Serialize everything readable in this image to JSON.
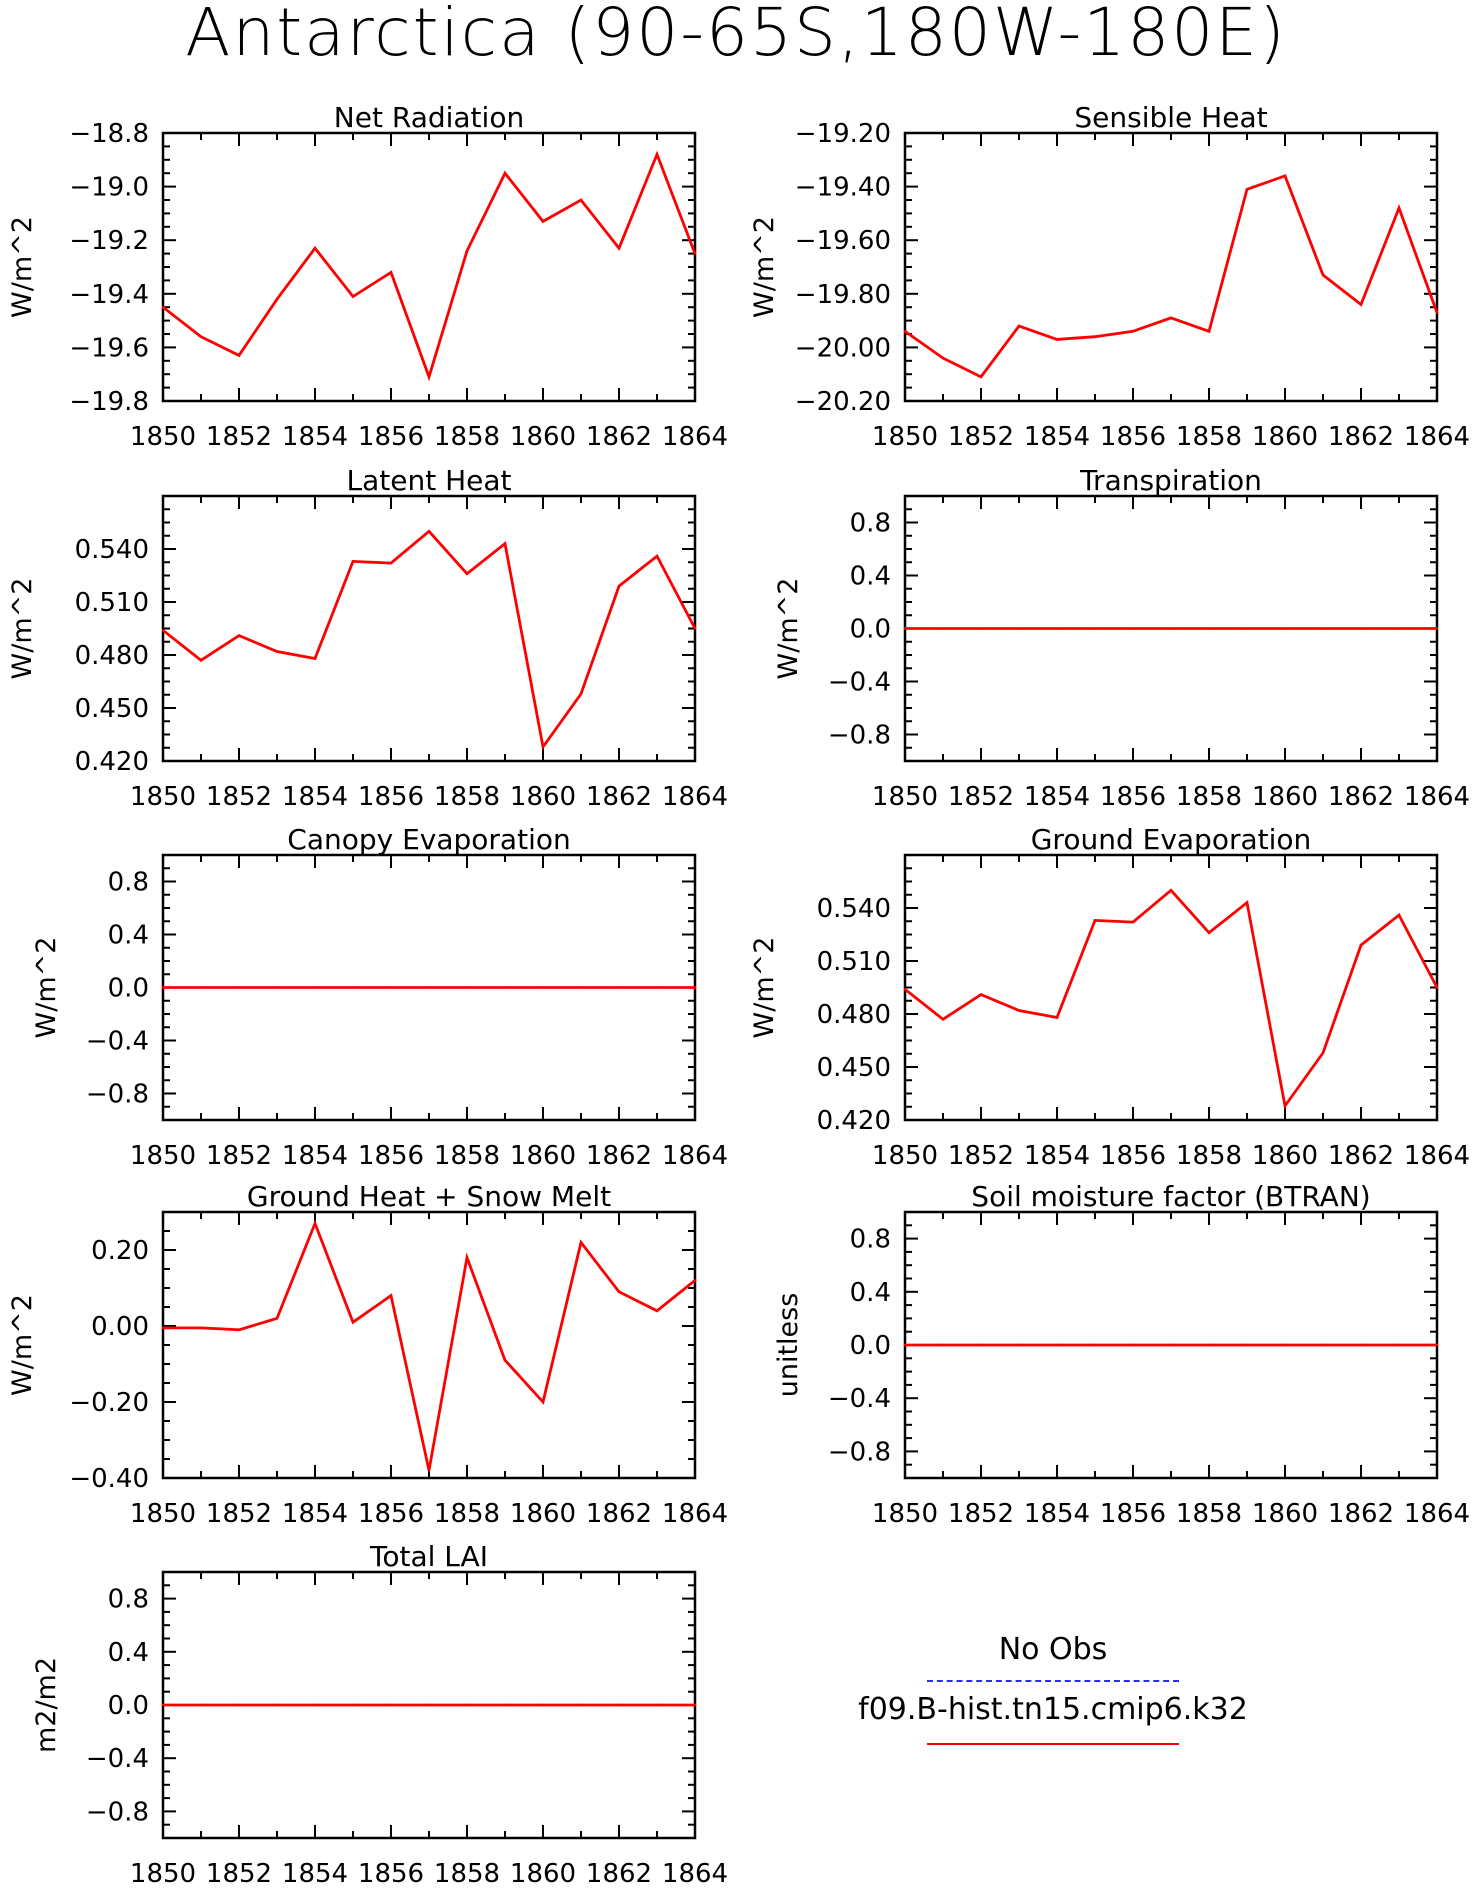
{
  "title": "Antarctica (90-65S,180W-180E)",
  "legend": {
    "items": [
      {
        "label": "No Obs",
        "color": "#2b2bff",
        "dashed": true
      },
      {
        "label": "f09.B-hist.tn15.cmip6.k32",
        "color": "#ff0000",
        "dashed": false
      }
    ]
  },
  "colors": {
    "series": "#ff0000",
    "axes": "#000000"
  },
  "chart_data": [
    {
      "type": "line",
      "title": "Net Radiation",
      "ylabel": "W/m^2",
      "xlabel": "",
      "x": [
        1850,
        1851,
        1852,
        1853,
        1854,
        1855,
        1856,
        1857,
        1858,
        1859,
        1860,
        1861,
        1862,
        1863,
        1864
      ],
      "series": [
        {
          "name": "f09.B-hist.tn15.cmip6.k32",
          "values": [
            -19.45,
            -19.56,
            -19.63,
            -19.42,
            -19.23,
            -19.41,
            -19.32,
            -19.71,
            -19.24,
            -18.95,
            -19.13,
            -19.05,
            -19.23,
            -18.88,
            -19.25
          ]
        }
      ],
      "xlim": [
        1850,
        1864
      ],
      "ylim": [
        -19.8,
        -18.8
      ],
      "xticks": [
        "1850",
        "1852",
        "1854",
        "1856",
        "1858",
        "1860",
        "1862",
        "1864"
      ],
      "yticks": [
        "-18.8",
        "-19.0",
        "-19.2",
        "-19.4",
        "-19.6",
        "-19.8"
      ]
    },
    {
      "type": "line",
      "title": "Sensible Heat",
      "ylabel": "W/m^2",
      "xlabel": "",
      "x": [
        1850,
        1851,
        1852,
        1853,
        1854,
        1855,
        1856,
        1857,
        1858,
        1859,
        1860,
        1861,
        1862,
        1863,
        1864
      ],
      "series": [
        {
          "name": "f09.B-hist.tn15.cmip6.k32",
          "values": [
            -19.94,
            -20.04,
            -20.11,
            -19.92,
            -19.97,
            -19.96,
            -19.94,
            -19.89,
            -19.94,
            -19.41,
            -19.36,
            -19.73,
            -19.84,
            -19.48,
            -19.87
          ]
        }
      ],
      "xlim": [
        1850,
        1864
      ],
      "ylim": [
        -20.2,
        -19.2
      ],
      "xticks": [
        "1850",
        "1852",
        "1854",
        "1856",
        "1858",
        "1860",
        "1862",
        "1864"
      ],
      "yticks": [
        "-19.20",
        "-19.40",
        "-19.60",
        "-19.80",
        "-20.00",
        "-20.20"
      ]
    },
    {
      "type": "line",
      "title": "Latent Heat",
      "ylabel": "W/m^2",
      "xlabel": "",
      "x": [
        1850,
        1851,
        1852,
        1853,
        1854,
        1855,
        1856,
        1857,
        1858,
        1859,
        1860,
        1861,
        1862,
        1863,
        1864
      ],
      "series": [
        {
          "name": "f09.B-hist.tn15.cmip6.k32",
          "values": [
            0.494,
            0.477,
            0.491,
            0.482,
            0.478,
            0.533,
            0.532,
            0.55,
            0.526,
            0.543,
            0.428,
            0.458,
            0.519,
            0.536,
            0.495
          ]
        }
      ],
      "xlim": [
        1850,
        1864
      ],
      "ylim": [
        0.42,
        0.57
      ],
      "xticks": [
        "1850",
        "1852",
        "1854",
        "1856",
        "1858",
        "1860",
        "1862",
        "1864"
      ],
      "yticks": [
        "0.540",
        "0.510",
        "0.480",
        "0.450",
        "0.420"
      ]
    },
    {
      "type": "line",
      "title": "Transpiration",
      "ylabel": "W/m^2",
      "xlabel": "",
      "x": [
        1850,
        1851,
        1852,
        1853,
        1854,
        1855,
        1856,
        1857,
        1858,
        1859,
        1860,
        1861,
        1862,
        1863,
        1864
      ],
      "series": [
        {
          "name": "f09.B-hist.tn15.cmip6.k32",
          "values": [
            0,
            0,
            0,
            0,
            0,
            0,
            0,
            0,
            0,
            0,
            0,
            0,
            0,
            0,
            0
          ]
        }
      ],
      "xlim": [
        1850,
        1864
      ],
      "ylim": [
        -1.0,
        1.0
      ],
      "xticks": [
        "1850",
        "1852",
        "1854",
        "1856",
        "1858",
        "1860",
        "1862",
        "1864"
      ],
      "yticks": [
        "0.8",
        "0.4",
        "0.0",
        "-0.4",
        "-0.8"
      ]
    },
    {
      "type": "line",
      "title": "Canopy Evaporation",
      "ylabel": "W/m^2",
      "xlabel": "",
      "x": [
        1850,
        1851,
        1852,
        1853,
        1854,
        1855,
        1856,
        1857,
        1858,
        1859,
        1860,
        1861,
        1862,
        1863,
        1864
      ],
      "series": [
        {
          "name": "f09.B-hist.tn15.cmip6.k32",
          "values": [
            0,
            0,
            0,
            0,
            0,
            0,
            0,
            0,
            0,
            0,
            0,
            0,
            0,
            0,
            0
          ]
        }
      ],
      "xlim": [
        1850,
        1864
      ],
      "ylim": [
        -1.0,
        1.0
      ],
      "xticks": [
        "1850",
        "1852",
        "1854",
        "1856",
        "1858",
        "1860",
        "1862",
        "1864"
      ],
      "yticks": [
        "0.8",
        "0.4",
        "0.0",
        "-0.4",
        "-0.8"
      ]
    },
    {
      "type": "line",
      "title": "Ground Evaporation",
      "ylabel": "W/m^2",
      "xlabel": "",
      "x": [
        1850,
        1851,
        1852,
        1853,
        1854,
        1855,
        1856,
        1857,
        1858,
        1859,
        1860,
        1861,
        1862,
        1863,
        1864
      ],
      "series": [
        {
          "name": "f09.B-hist.tn15.cmip6.k32",
          "values": [
            0.494,
            0.477,
            0.491,
            0.482,
            0.478,
            0.533,
            0.532,
            0.55,
            0.526,
            0.543,
            0.428,
            0.458,
            0.519,
            0.536,
            0.495
          ]
        }
      ],
      "xlim": [
        1850,
        1864
      ],
      "ylim": [
        0.42,
        0.57
      ],
      "xticks": [
        "1850",
        "1852",
        "1854",
        "1856",
        "1858",
        "1860",
        "1862",
        "1864"
      ],
      "yticks": [
        "0.540",
        "0.510",
        "0.480",
        "0.450",
        "0.420"
      ]
    },
    {
      "type": "line",
      "title": "Ground Heat + Snow Melt",
      "ylabel": "W/m^2",
      "xlabel": "",
      "x": [
        1850,
        1851,
        1852,
        1853,
        1854,
        1855,
        1856,
        1857,
        1858,
        1859,
        1860,
        1861,
        1862,
        1863,
        1864
      ],
      "series": [
        {
          "name": "f09.B-hist.tn15.cmip6.k32",
          "values": [
            -0.005,
            -0.005,
            -0.01,
            0.02,
            0.27,
            0.01,
            0.08,
            -0.38,
            0.18,
            -0.09,
            -0.2,
            0.22,
            0.09,
            0.04,
            0.12
          ]
        }
      ],
      "xlim": [
        1850,
        1864
      ],
      "ylim": [
        -0.4,
        0.3
      ],
      "xticks": [
        "1850",
        "1852",
        "1854",
        "1856",
        "1858",
        "1860",
        "1862",
        "1864"
      ],
      "yticks": [
        "0.20",
        "0.00",
        "-0.20",
        "-0.40"
      ]
    },
    {
      "type": "line",
      "title": "Soil moisture factor (BTRAN)",
      "ylabel": "unitless",
      "xlabel": "",
      "x": [
        1850,
        1851,
        1852,
        1853,
        1854,
        1855,
        1856,
        1857,
        1858,
        1859,
        1860,
        1861,
        1862,
        1863,
        1864
      ],
      "series": [
        {
          "name": "f09.B-hist.tn15.cmip6.k32",
          "values": [
            0,
            0,
            0,
            0,
            0,
            0,
            0,
            0,
            0,
            0,
            0,
            0,
            0,
            0,
            0
          ]
        }
      ],
      "xlim": [
        1850,
        1864
      ],
      "ylim": [
        -1.0,
        1.0
      ],
      "xticks": [
        "1850",
        "1852",
        "1854",
        "1856",
        "1858",
        "1860",
        "1862",
        "1864"
      ],
      "yticks": [
        "0.8",
        "0.4",
        "0.0",
        "-0.4",
        "-0.8"
      ]
    },
    {
      "type": "line",
      "title": "Total LAI",
      "ylabel": "m2/m2",
      "xlabel": "",
      "x": [
        1850,
        1851,
        1852,
        1853,
        1854,
        1855,
        1856,
        1857,
        1858,
        1859,
        1860,
        1861,
        1862,
        1863,
        1864
      ],
      "series": [
        {
          "name": "f09.B-hist.tn15.cmip6.k32",
          "values": [
            0,
            0,
            0,
            0,
            0,
            0,
            0,
            0,
            0,
            0,
            0,
            0,
            0,
            0,
            0
          ]
        }
      ],
      "xlim": [
        1850,
        1864
      ],
      "ylim": [
        -1.0,
        1.0
      ],
      "xticks": [
        "1850",
        "1852",
        "1854",
        "1856",
        "1858",
        "1860",
        "1862",
        "1864"
      ],
      "yticks": [
        "0.8",
        "0.4",
        "0.0",
        "-0.4",
        "-0.8"
      ]
    }
  ]
}
